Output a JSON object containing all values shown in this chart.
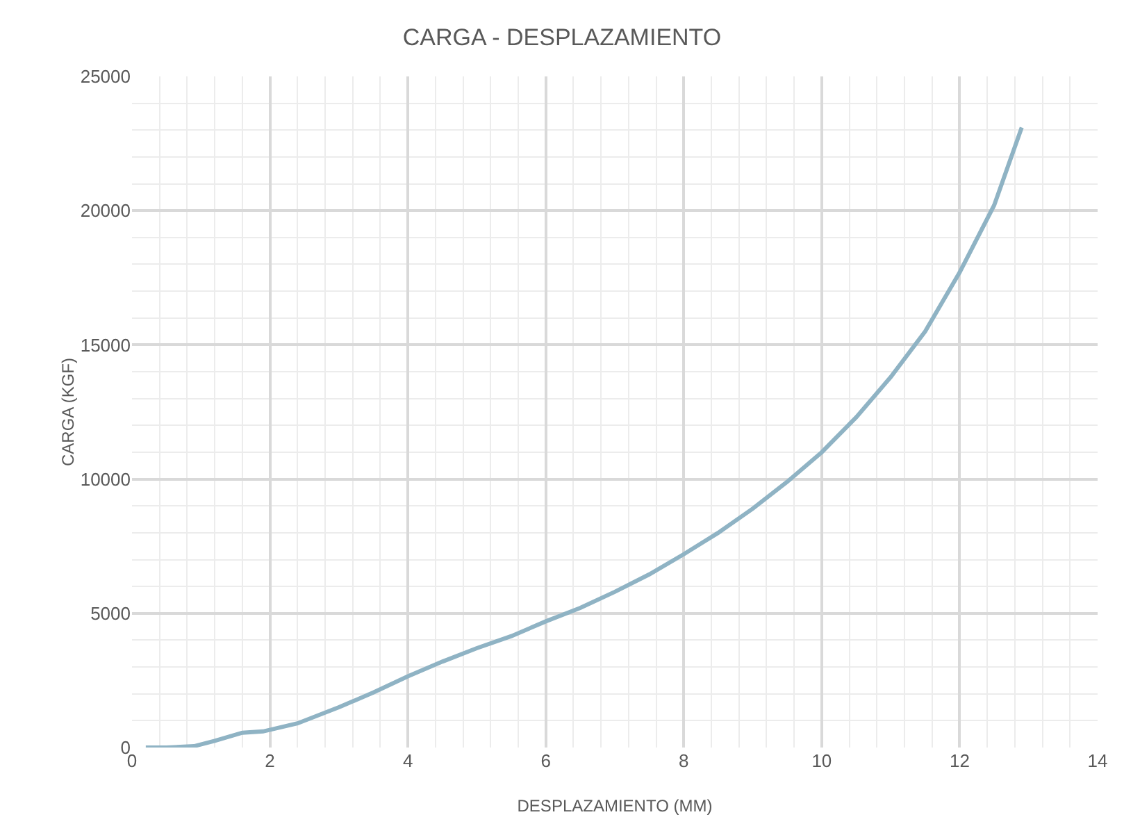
{
  "chart_data": {
    "type": "line",
    "title": "CARGA - DESPLAZAMIENTO",
    "xlabel": "DESPLAZAMIENTO (MM)",
    "ylabel": "CARGA (KGF)",
    "x": [
      0.2,
      0.5,
      0.9,
      1.2,
      1.6,
      1.9,
      2.4,
      3,
      3.5,
      4,
      4.5,
      5,
      5.5,
      6,
      6.5,
      7,
      7.5,
      8,
      8.5,
      9,
      9.5,
      10,
      10.5,
      11,
      11.5,
      12,
      12.5,
      12.9
    ],
    "series": [
      {
        "color": "#8fb3c4",
        "values": [
          0,
          0,
          50,
          250,
          550,
          600,
          900,
          1500,
          2050,
          2650,
          3200,
          3700,
          4150,
          4700,
          5200,
          5800,
          6450,
          7200,
          8000,
          8900,
          9900,
          11000,
          12300,
          13800,
          15500,
          17700,
          20200,
          23100
        ]
      }
    ],
    "xlim": [
      0,
      14
    ],
    "xticks": [
      0,
      2,
      4,
      6,
      8,
      10,
      12,
      14
    ],
    "ylim": [
      0,
      25000
    ],
    "yticks": [
      0,
      5000,
      10000,
      15000,
      20000,
      25000
    ],
    "grid": true,
    "marker": "none",
    "line_style": "solid"
  }
}
